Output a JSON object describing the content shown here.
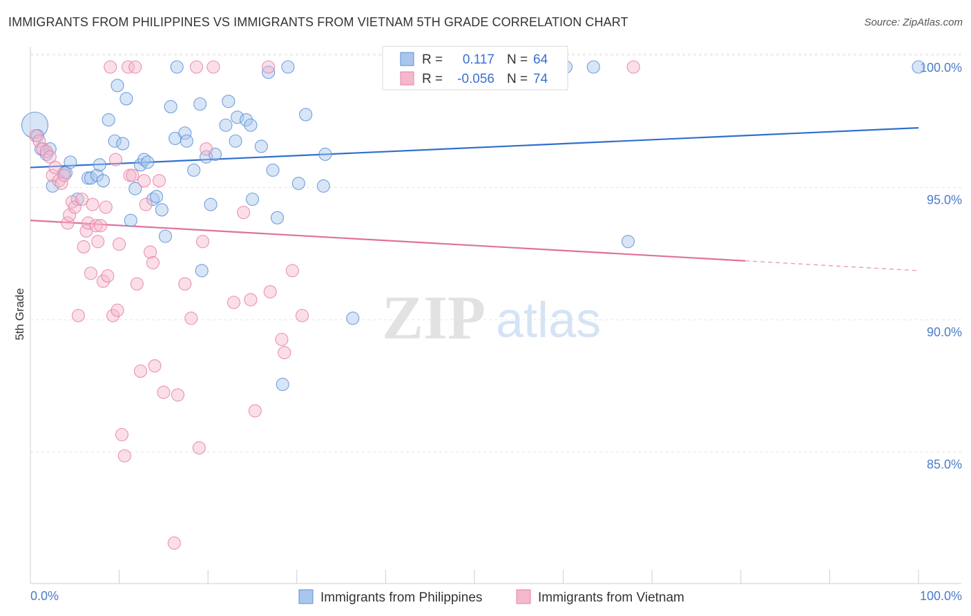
{
  "title": "IMMIGRANTS FROM PHILIPPINES VS IMMIGRANTS FROM VIETNAM 5TH GRADE CORRELATION CHART",
  "source": "Source: ZipAtlas.com",
  "watermark": {
    "zip": "ZIP",
    "atlas": "atlas"
  },
  "colors": {
    "blue": "#5b8fd6",
    "blue_fill": "#a9c6ee",
    "blue_line": "#2f6fce",
    "pink": "#e87fa8",
    "pink_fill": "#f4b8cd",
    "pink_line": "#e0709c",
    "axis_text": "#4a7cc9"
  },
  "chart_data": {
    "type": "scatter",
    "xlabel": "",
    "ylabel": "5th Grade",
    "xlim": [
      0,
      100
    ],
    "ylim": [
      80.5,
      100.8
    ],
    "x_tick_labels": [
      "0.0%",
      "100.0%"
    ],
    "y_ticks": [
      {
        "value": 100,
        "label": "100.0%"
      },
      {
        "value": 95,
        "label": "95.0%"
      },
      {
        "value": 90,
        "label": "90.0%"
      },
      {
        "value": 85,
        "label": "85.0%"
      }
    ],
    "legend": {
      "entries": [
        {
          "r_label": "R =",
          "r_value": "0.117",
          "n_label": "N =",
          "n_value": "64"
        },
        {
          "r_label": "R =",
          "r_value": "-0.056",
          "n_label": "N =",
          "n_value": "74"
        }
      ]
    },
    "series": [
      {
        "name": "Immigrants from Philippines",
        "color": "#5b8fd6",
        "trend": {
          "x0": 0,
          "y0": 96.2,
          "x1": 100,
          "y1": 97.7,
          "solid_until": 100
        },
        "points": [
          [
            0.5,
            97.8
          ],
          [
            0.8,
            97.4
          ],
          [
            1.2,
            96.9
          ],
          [
            1.8,
            96.7
          ],
          [
            2.2,
            96.9
          ],
          [
            2.5,
            95.5
          ],
          [
            3.8,
            96.0
          ],
          [
            4.0,
            96.0
          ],
          [
            4.5,
            96.4
          ],
          [
            5.3,
            95.0
          ],
          [
            6.5,
            95.8
          ],
          [
            6.8,
            95.8
          ],
          [
            7.5,
            95.9
          ],
          [
            7.8,
            96.3
          ],
          [
            8.2,
            95.7
          ],
          [
            8.8,
            98.0
          ],
          [
            9.5,
            97.2
          ],
          [
            9.8,
            99.3
          ],
          [
            10.4,
            97.1
          ],
          [
            10.8,
            98.8
          ],
          [
            11.3,
            94.2
          ],
          [
            11.8,
            95.4
          ],
          [
            12.4,
            96.3
          ],
          [
            12.8,
            96.5
          ],
          [
            13.2,
            96.4
          ],
          [
            13.8,
            95.0
          ],
          [
            14.2,
            95.1
          ],
          [
            14.8,
            94.6
          ],
          [
            15.2,
            93.6
          ],
          [
            15.8,
            98.5
          ],
          [
            16.3,
            97.3
          ],
          [
            16.5,
            100.0
          ],
          [
            17.4,
            97.5
          ],
          [
            17.6,
            97.2
          ],
          [
            18.4,
            96.1
          ],
          [
            19.1,
            98.6
          ],
          [
            19.3,
            92.3
          ],
          [
            19.8,
            96.6
          ],
          [
            20.3,
            94.8
          ],
          [
            20.8,
            96.7
          ],
          [
            22.0,
            97.8
          ],
          [
            22.3,
            98.7
          ],
          [
            23.1,
            97.2
          ],
          [
            23.3,
            98.1
          ],
          [
            24.3,
            98.0
          ],
          [
            24.8,
            97.8
          ],
          [
            25.0,
            95.0
          ],
          [
            26.0,
            97.0
          ],
          [
            26.8,
            99.8
          ],
          [
            27.3,
            96.1
          ],
          [
            27.8,
            94.3
          ],
          [
            28.4,
            88.0
          ],
          [
            29.0,
            100.0
          ],
          [
            30.2,
            95.6
          ],
          [
            31.0,
            98.2
          ],
          [
            33.2,
            96.7
          ],
          [
            33.0,
            95.5
          ],
          [
            36.3,
            90.5
          ],
          [
            60.3,
            100.0
          ],
          [
            63.4,
            100.0
          ],
          [
            67.3,
            93.4
          ],
          [
            100.0,
            100.0
          ]
        ]
      },
      {
        "name": "Immigrants from Vietnam",
        "color": "#e87fa8",
        "trend": {
          "x0": 0,
          "y0": 94.2,
          "x1": 100,
          "y1": 92.3,
          "solid_until": 80.5
        },
        "points": [
          [
            0.6,
            97.4
          ],
          [
            1.0,
            97.2
          ],
          [
            1.4,
            96.9
          ],
          [
            1.8,
            96.8
          ],
          [
            2.2,
            96.6
          ],
          [
            2.5,
            95.9
          ],
          [
            2.8,
            96.2
          ],
          [
            3.2,
            95.7
          ],
          [
            3.5,
            95.6
          ],
          [
            3.8,
            95.9
          ],
          [
            4.2,
            94.1
          ],
          [
            4.4,
            94.4
          ],
          [
            4.7,
            94.9
          ],
          [
            5.0,
            94.7
          ],
          [
            5.4,
            90.6
          ],
          [
            5.8,
            95.0
          ],
          [
            6.0,
            93.2
          ],
          [
            6.3,
            93.8
          ],
          [
            6.5,
            94.1
          ],
          [
            6.8,
            92.2
          ],
          [
            7.0,
            94.8
          ],
          [
            7.4,
            94.0
          ],
          [
            7.6,
            93.4
          ],
          [
            7.9,
            94.0
          ],
          [
            8.2,
            91.9
          ],
          [
            8.5,
            94.7
          ],
          [
            8.7,
            92.1
          ],
          [
            9.0,
            100.0
          ],
          [
            9.3,
            90.6
          ],
          [
            9.6,
            96.5
          ],
          [
            9.8,
            90.8
          ],
          [
            10.0,
            93.3
          ],
          [
            10.3,
            86.1
          ],
          [
            10.6,
            85.3
          ],
          [
            11.0,
            100.0
          ],
          [
            11.2,
            95.9
          ],
          [
            11.5,
            95.9
          ],
          [
            11.8,
            100.0
          ],
          [
            12.0,
            91.8
          ],
          [
            12.4,
            88.5
          ],
          [
            12.8,
            95.7
          ],
          [
            13.0,
            94.8
          ],
          [
            13.5,
            93.0
          ],
          [
            13.8,
            92.6
          ],
          [
            14.0,
            88.7
          ],
          [
            14.5,
            95.7
          ],
          [
            15.0,
            87.7
          ],
          [
            16.2,
            82.0
          ],
          [
            16.6,
            87.6
          ],
          [
            17.4,
            91.8
          ],
          [
            18.1,
            90.5
          ],
          [
            18.7,
            100.0
          ],
          [
            19.0,
            85.6
          ],
          [
            19.4,
            93.4
          ],
          [
            19.8,
            96.9
          ],
          [
            20.6,
            100.0
          ],
          [
            22.9,
            91.1
          ],
          [
            24.0,
            94.5
          ],
          [
            24.8,
            91.2
          ],
          [
            25.3,
            87.0
          ],
          [
            26.8,
            100.0
          ],
          [
            27.0,
            91.5
          ],
          [
            28.3,
            89.7
          ],
          [
            28.6,
            89.2
          ],
          [
            29.5,
            92.3
          ],
          [
            30.6,
            90.6
          ],
          [
            67.9,
            100.0
          ]
        ]
      }
    ]
  },
  "bottom_legend": [
    "Immigrants from Philippines",
    "Immigrants from Vietnam"
  ]
}
